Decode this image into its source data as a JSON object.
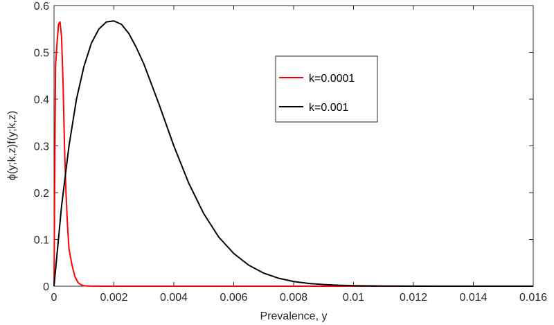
{
  "chart_data": {
    "type": "line",
    "title": "",
    "xlabel": "Prevalence, y",
    "ylabel": "ϕ(y;k,z)f(y;k,z)",
    "xlim": [
      0,
      0.016
    ],
    "ylim": [
      0,
      0.6
    ],
    "xticks": [
      0,
      0.002,
      0.004,
      0.006,
      0.008,
      0.01,
      0.012,
      0.014,
      0.016
    ],
    "xtick_labels": [
      "0",
      "0.002",
      "0.004",
      "0.006",
      "0.008",
      "0.01",
      "0.012",
      "0.014",
      "0.016"
    ],
    "yticks": [
      0,
      0.1,
      0.2,
      0.3,
      0.4,
      0.5,
      0.6
    ],
    "ytick_labels": [
      "0",
      "0.1",
      "0.2",
      "0.3",
      "0.4",
      "0.5",
      "0.6"
    ],
    "grid": false,
    "legend_position": "upper-center-right",
    "series": [
      {
        "name": "k=0.0001",
        "color": "#ff0000",
        "x": [
          0,
          5e-05,
          0.0001,
          0.00015,
          0.0002,
          0.00025,
          0.0003,
          0.00035,
          0.0004,
          0.00045,
          0.0005,
          0.0006,
          0.0007,
          0.0008,
          0.0009,
          0.001,
          0.0012,
          0.0015,
          0.002,
          0.004,
          0.008,
          0.016
        ],
        "y": [
          0,
          0.47,
          0.52,
          0.56,
          0.565,
          0.535,
          0.44,
          0.3,
          0.2,
          0.13,
          0.08,
          0.045,
          0.02,
          0.008,
          0.003,
          0.001,
          0.0002,
          0,
          0,
          0,
          0,
          0
        ]
      },
      {
        "name": "k=0.001",
        "color": "#000000",
        "x": [
          0,
          0.00025,
          0.0005,
          0.00075,
          0.001,
          0.00125,
          0.0015,
          0.00175,
          0.002,
          0.00225,
          0.0025,
          0.00275,
          0.003,
          0.0035,
          0.004,
          0.0045,
          0.005,
          0.0055,
          0.006,
          0.0065,
          0.007,
          0.0075,
          0.008,
          0.0085,
          0.009,
          0.0095,
          0.01,
          0.011,
          0.012,
          0.013,
          0.014,
          0.015,
          0.016
        ],
        "y": [
          0,
          0.17,
          0.3,
          0.4,
          0.47,
          0.52,
          0.55,
          0.565,
          0.567,
          0.56,
          0.54,
          0.51,
          0.475,
          0.39,
          0.3,
          0.22,
          0.155,
          0.105,
          0.07,
          0.045,
          0.028,
          0.017,
          0.01,
          0.006,
          0.0035,
          0.002,
          0.0012,
          0.0004,
          0.00012,
          4e-05,
          1e-05,
          0,
          0
        ]
      }
    ]
  }
}
